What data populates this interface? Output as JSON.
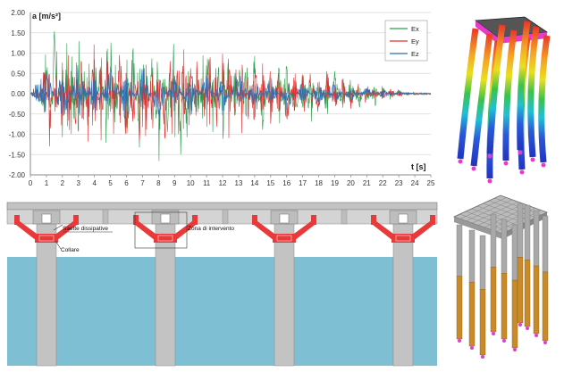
{
  "chart_data": {
    "type": "line",
    "ylabel": "a [m/s²]",
    "xlabel": "t [s]",
    "xlim": [
      0,
      25
    ],
    "ylim": [
      -2.0,
      2.0
    ],
    "x_ticks": [
      "0",
      "1",
      "2",
      "3",
      "4",
      "5",
      "6",
      "7",
      "8",
      "9",
      "10",
      "11",
      "12",
      "13",
      "14",
      "15",
      "16",
      "17",
      "18",
      "19",
      "20",
      "21",
      "22",
      "23",
      "24",
      "25"
    ],
    "y_ticks": [
      "2.00",
      "1.50",
      "1.00",
      "0.50",
      "0.00",
      "-0.50",
      "-1.00",
      "-1.50",
      "-2.00"
    ],
    "grid": "horizontal",
    "legend_position": "top-right",
    "series": [
      {
        "name": "Ex",
        "color": "#2e9e4f",
        "x": [
          0,
          0.5,
          0.8,
          1,
          1.2,
          1.5,
          2,
          2.3,
          2.6,
          3,
          3.3,
          3.6,
          4,
          4.4,
          4.8,
          5,
          5.3,
          5.6,
          6,
          6.4,
          6.8,
          7,
          7.3,
          7.6,
          8,
          8.3,
          8.6,
          9,
          9.4,
          9.8,
          10,
          10.4,
          10.8,
          11,
          11.4,
          11.8,
          12,
          12.4,
          12.8,
          13,
          13.5,
          14,
          14.5,
          15,
          15.5,
          16,
          16.5,
          17,
          17.5,
          18,
          18.5,
          19,
          19.5,
          20,
          20.5,
          21,
          21.5,
          22,
          22.5,
          23,
          23.5,
          24,
          24.5,
          25
        ],
        "y": [
          0,
          0.15,
          -0.6,
          1.4,
          -1.2,
          1.7,
          -1.0,
          1.3,
          -1.3,
          1.5,
          -1.4,
          1.1,
          -1.5,
          1.2,
          -1.6,
          1.4,
          -1.3,
          1.0,
          -1.2,
          1.3,
          -1.5,
          1.2,
          -1.3,
          1.1,
          -1.7,
          1.0,
          -1.2,
          1.5,
          -1.4,
          1.6,
          -1.0,
          1.1,
          -1.3,
          1.2,
          -1.1,
          0.9,
          -1.2,
          1.0,
          -1.1,
          0.8,
          -1.0,
          0.9,
          -0.8,
          0.7,
          -0.9,
          1.0,
          -0.7,
          0.6,
          -0.8,
          0.5,
          -0.6,
          0.5,
          -0.5,
          0.4,
          -0.4,
          0.3,
          -0.3,
          0.2,
          -0.15,
          0.1,
          -0.05,
          0.05,
          -0.02,
          0
        ]
      },
      {
        "name": "Ey",
        "color": "#e03030",
        "x": [
          0,
          0.5,
          0.9,
          1.2,
          1.6,
          2,
          2.4,
          2.8,
          3.2,
          3.6,
          4,
          4.4,
          4.8,
          5.2,
          5.6,
          6,
          6.4,
          6.8,
          7.2,
          7.6,
          8,
          8.4,
          8.8,
          9.2,
          9.6,
          10,
          10.4,
          10.8,
          11.2,
          11.6,
          12,
          12.4,
          12.8,
          13.2,
          13.6,
          14,
          14.5,
          15,
          15.5,
          16,
          16.5,
          17,
          17.5,
          18,
          18.5,
          19,
          19.5,
          20,
          20.5,
          21,
          21.5,
          22,
          22.5,
          23,
          23.5,
          24,
          24.5,
          25
        ],
        "y": [
          0,
          -0.2,
          0.7,
          -1.3,
          1.0,
          -1.1,
          1.4,
          -1.5,
          1.3,
          -1.2,
          1.6,
          -1.3,
          1.1,
          -1.0,
          1.2,
          -1.4,
          1.3,
          -1.2,
          1.5,
          -1.0,
          1.1,
          -1.3,
          1.4,
          -1.2,
          1.3,
          -1.5,
          1.2,
          -1.0,
          1.1,
          -0.9,
          1.0,
          -1.2,
          0.9,
          -1.0,
          0.8,
          -0.9,
          0.7,
          -0.8,
          0.9,
          -0.7,
          0.6,
          -0.7,
          0.5,
          -0.6,
          0.6,
          -0.5,
          0.4,
          -0.4,
          0.3,
          -0.3,
          0.25,
          -0.2,
          0.15,
          -0.1,
          0.05,
          -0.03,
          0.02,
          0
        ]
      },
      {
        "name": "Ez",
        "color": "#2b6fb5",
        "x": [
          0,
          1,
          2,
          3,
          4,
          5,
          6,
          7,
          8,
          9,
          10,
          11,
          12,
          13,
          14,
          15,
          16,
          17,
          18,
          19,
          20,
          21,
          22,
          23,
          24,
          25
        ],
        "y": [
          0,
          0.6,
          -0.7,
          0.7,
          -0.6,
          0.6,
          -0.7,
          0.6,
          -0.6,
          0.5,
          -0.6,
          0.5,
          -0.5,
          0.5,
          -0.4,
          0.4,
          -0.4,
          0.3,
          -0.3,
          0.3,
          -0.2,
          0.15,
          -0.1,
          0.05,
          -0.02,
          0
        ]
      }
    ]
  },
  "diagram": {
    "labels": {
      "saette": "Saette dissipative",
      "collare": "Collare",
      "zona": "Zona di intervento"
    },
    "colors": {
      "deck": "#c3c3c3",
      "pier": "#c3c3c3",
      "water": "#7fbfd3",
      "bracket": "#e83a3a",
      "orange": "#c98a2a",
      "magenta": "#e83ad0"
    }
  }
}
